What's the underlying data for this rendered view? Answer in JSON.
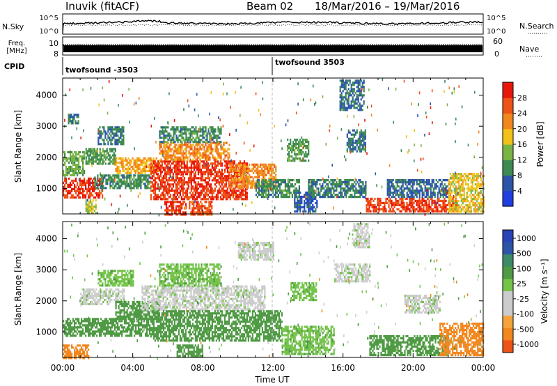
{
  "header": {
    "station": "Inuvik (fitACF)",
    "beam": "Beam 02",
    "dates": "18/Mar/2016 – 19/Mar/2016"
  },
  "strips": {
    "nsky_label": "N.Sky",
    "nsky_ticks": [
      "10^5",
      "10^0"
    ],
    "nsearch_label": "N.Search",
    "nsearch_ticks": [
      "10^5",
      "10^0"
    ],
    "freq_label_1": "Freq.",
    "freq_label_2": "[MHz]",
    "freq_ticks": [
      "10",
      "8"
    ],
    "nave_label": "Nave",
    "nave_ticks": [
      "60",
      "0"
    ],
    "cpid_label": "CPID",
    "cpid_segments": [
      {
        "name": "twofsound -3503",
        "start_h": 0
      },
      {
        "name": "twofsound 3503",
        "start_h": 12
      }
    ]
  },
  "colors": {
    "power": [
      "#1f3fe0",
      "#2c55a8",
      "#3d8a52",
      "#7ab445",
      "#f2c11a",
      "#f2871e",
      "#ef5216",
      "#e8170c"
    ],
    "velocity": [
      "#e8170c",
      "#ef5216",
      "#f2871e",
      "#f5a33a",
      "#cccccc",
      "#cccccc",
      "#74c44a",
      "#4f9a44",
      "#3d8a66",
      "#2c55a8",
      "#2844b8"
    ]
  },
  "chart_data": [
    {
      "type": "heatmap",
      "name": "power",
      "ylabel": "Slant Range [km]",
      "xlabel": "",
      "xlim": [
        0,
        24
      ],
      "ylim": [
        180,
        4550
      ],
      "xticks": [
        "00:00",
        "04:00",
        "08:00",
        "12:00",
        "16:00",
        "20:00",
        "00:00"
      ],
      "yticks": [
        1000,
        2000,
        3000,
        4000
      ],
      "colorbar": {
        "label": "Power [dB]",
        "ticks": [
          4,
          8,
          12,
          16,
          20,
          24,
          28
        ]
      },
      "regions": [
        {
          "t": [
            0.0,
            2.3
          ],
          "r": [
            700,
            1350
          ],
          "v": 28
        },
        {
          "t": [
            0.0,
            1.2
          ],
          "r": [
            1400,
            2200
          ],
          "v": 13
        },
        {
          "t": [
            0.3,
            0.9
          ],
          "r": [
            3100,
            3400
          ],
          "v": 8
        },
        {
          "t": [
            1.3,
            1.9
          ],
          "r": [
            180,
            650
          ],
          "v": 16
        },
        {
          "t": [
            1.8,
            5.0
          ],
          "r": [
            1000,
            1450
          ],
          "v": 10
        },
        {
          "t": [
            1.3,
            3.0
          ],
          "r": [
            1800,
            2300
          ],
          "v": 11
        },
        {
          "t": [
            2.0,
            3.5
          ],
          "r": [
            2400,
            3000
          ],
          "v": 9
        },
        {
          "t": [
            3.0,
            5.5
          ],
          "r": [
            1500,
            2000
          ],
          "v": 20
        },
        {
          "t": [
            5.0,
            10.5
          ],
          "r": [
            650,
            1900
          ],
          "v": 28
        },
        {
          "t": [
            5.5,
            9.5
          ],
          "r": [
            1900,
            2500
          ],
          "v": 22
        },
        {
          "t": [
            5.5,
            9.0
          ],
          "r": [
            2500,
            3000
          ],
          "v": 10
        },
        {
          "t": [
            5.8,
            7.0
          ],
          "r": [
            180,
            600
          ],
          "v": 28
        },
        {
          "t": [
            7.2,
            8.5
          ],
          "r": [
            180,
            600
          ],
          "v": 26
        },
        {
          "t": [
            9.5,
            12.2
          ],
          "r": [
            1000,
            1800
          ],
          "v": 22
        },
        {
          "t": [
            11.0,
            13.5
          ],
          "r": [
            700,
            1300
          ],
          "v": 10
        },
        {
          "t": [
            12.8,
            14.0
          ],
          "r": [
            1900,
            2600
          ],
          "v": 11
        },
        {
          "t": [
            13.2,
            14.5
          ],
          "r": [
            250,
            900
          ],
          "v": 6
        },
        {
          "t": [
            14.0,
            17.3
          ],
          "r": [
            700,
            1300
          ],
          "v": 9
        },
        {
          "t": [
            15.8,
            17.2
          ],
          "r": [
            3500,
            4500
          ],
          "v": 7
        },
        {
          "t": [
            16.2,
            17.3
          ],
          "r": [
            2200,
            2900
          ],
          "v": 8
        },
        {
          "t": [
            17.3,
            22.5
          ],
          "r": [
            250,
            700
          ],
          "v": 27
        },
        {
          "t": [
            18.5,
            22.0
          ],
          "r": [
            700,
            1300
          ],
          "v": 7
        },
        {
          "t": [
            22.0,
            24.0
          ],
          "r": [
            250,
            1500
          ],
          "v": 18
        }
      ]
    },
    {
      "type": "heatmap",
      "name": "velocity",
      "ylabel": "Slant Range [km]",
      "xlabel": "Time UT",
      "xlim": [
        0,
        24
      ],
      "ylim": [
        180,
        4550
      ],
      "xticks": [
        "00:00",
        "04:00",
        "08:00",
        "12:00",
        "16:00",
        "20:00",
        "00:00"
      ],
      "yticks": [
        1000,
        2000,
        3000,
        4000
      ],
      "colorbar": {
        "label": "Velocity [m s⁻¹]",
        "ticks": [
          "1000",
          "500",
          "100",
          "25",
          "-25",
          "-100",
          "-500",
          "-1000"
        ]
      },
      "regions": [
        {
          "t": [
            0.0,
            5.0
          ],
          "r": [
            900,
            1450
          ],
          "v": 200
        },
        {
          "t": [
            0.0,
            1.5
          ],
          "r": [
            180,
            600
          ],
          "v": -300
        },
        {
          "t": [
            1.0,
            3.5
          ],
          "r": [
            1900,
            2400
          ],
          "v": 5
        },
        {
          "t": [
            2.0,
            4.0
          ],
          "r": [
            2500,
            3000
          ],
          "v": 80
        },
        {
          "t": [
            3.0,
            5.5
          ],
          "r": [
            1450,
            2000
          ],
          "v": 200
        },
        {
          "t": [
            4.5,
            11.5
          ],
          "r": [
            1700,
            2500
          ],
          "v": 5
        },
        {
          "t": [
            5.0,
            12.5
          ],
          "r": [
            700,
            1700
          ],
          "v": 400
        },
        {
          "t": [
            5.5,
            9.0
          ],
          "r": [
            2500,
            3200
          ],
          "v": 80
        },
        {
          "t": [
            6.5,
            8.0
          ],
          "r": [
            250,
            600
          ],
          "v": 200
        },
        {
          "t": [
            10.0,
            12.0
          ],
          "r": [
            3300,
            3900
          ],
          "v": 5
        },
        {
          "t": [
            12.5,
            15.5
          ],
          "r": [
            300,
            1200
          ],
          "v": 80
        },
        {
          "t": [
            13.0,
            14.5
          ],
          "r": [
            2000,
            2600
          ],
          "v": 80
        },
        {
          "t": [
            15.5,
            17.5
          ],
          "r": [
            2600,
            3200
          ],
          "v": 5
        },
        {
          "t": [
            16.5,
            17.5
          ],
          "r": [
            3700,
            4500
          ],
          "v": 5
        },
        {
          "t": [
            17.5,
            22.0
          ],
          "r": [
            250,
            900
          ],
          "v": 150
        },
        {
          "t": [
            19.5,
            21.5
          ],
          "r": [
            1600,
            2200
          ],
          "v": 5
        },
        {
          "t": [
            21.5,
            24.0
          ],
          "r": [
            250,
            1300
          ],
          "v": -300
        }
      ]
    }
  ]
}
